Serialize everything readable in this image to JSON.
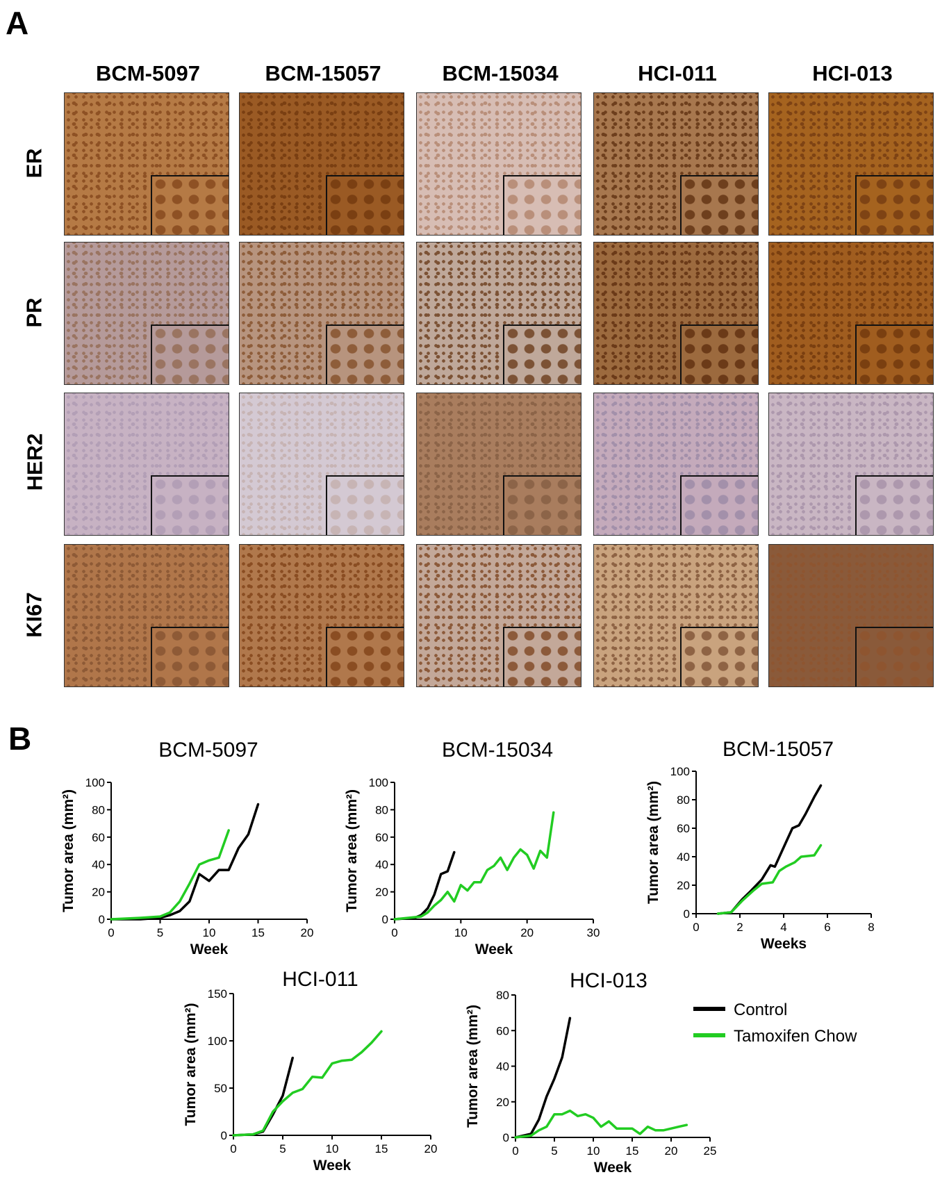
{
  "panel_a": {
    "label": "A",
    "columns": [
      "BCM-5097",
      "BCM-15057",
      "BCM-15034",
      "HCI-011",
      "HCI-013"
    ],
    "rows": [
      "ER",
      "PR",
      "HER2",
      "KI67"
    ],
    "tile_colors": [
      [
        [
          "#b57a45",
          "#8e5124"
        ],
        [
          "#9a5a24",
          "#7a3f12"
        ],
        [
          "#d7bdb4",
          "#b98f7a"
        ],
        [
          "#a7774e",
          "#6e3f1d"
        ],
        [
          "#a5631f",
          "#7e4314"
        ]
      ],
      [
        [
          "#b59a9a",
          "#9a7461"
        ],
        [
          "#b7947e",
          "#8e5d3a"
        ],
        [
          "#bfa89a",
          "#7c5235"
        ],
        [
          "#9c6a3e",
          "#6b3a18"
        ],
        [
          "#a05d1f",
          "#7a3f10"
        ]
      ],
      [
        [
          "#c7b2c3",
          "#b39fb6"
        ],
        [
          "#d4c9d3",
          "#c7b4b4"
        ],
        [
          "#a97d5e",
          "#8c6448"
        ],
        [
          "#c4aabb",
          "#a390aa"
        ],
        [
          "#c9b6c3",
          "#ad98ad"
        ]
      ],
      [
        [
          "#b0764a",
          "#8e5a36"
        ],
        [
          "#b0784c",
          "#8a4d22"
        ],
        [
          "#c3a899",
          "#8c5a3a"
        ],
        [
          "#c9a37e",
          "#8e6344"
        ],
        [
          "#8a5a3a",
          "#8e5530"
        ]
      ]
    ]
  },
  "panel_b": {
    "label": "B",
    "legend": [
      {
        "name": "Control",
        "color": "#000000"
      },
      {
        "name": "Tamoxifen Chow",
        "color": "#22cc22"
      }
    ]
  },
  "chart_data": [
    {
      "type": "line",
      "title": "BCM-5097",
      "xlabel": "Week",
      "ylabel": "Tumor area (mm²)",
      "xlim": [
        0,
        20
      ],
      "ylim": [
        0,
        100
      ],
      "xticks": [
        0,
        5,
        10,
        15,
        20
      ],
      "yticks": [
        0,
        20,
        40,
        60,
        80,
        100
      ],
      "series": [
        {
          "name": "Control",
          "color": "#000000",
          "x": [
            0,
            3,
            5,
            6,
            7,
            8,
            9,
            10,
            11,
            12,
            13,
            14,
            15
          ],
          "y": [
            0,
            0,
            1,
            3,
            6,
            13,
            33,
            28,
            36,
            36,
            52,
            62,
            84
          ]
        },
        {
          "name": "Tamoxifen Chow",
          "color": "#22cc22",
          "x": [
            0,
            3,
            5,
            6,
            7,
            8,
            9,
            10,
            11,
            12
          ],
          "y": [
            0,
            1,
            2,
            5,
            13,
            26,
            40,
            43,
            45,
            65
          ]
        }
      ]
    },
    {
      "type": "line",
      "title": "BCM-15034",
      "xlabel": "Week",
      "ylabel": "Tumor area (mm²)",
      "xlim": [
        0,
        30
      ],
      "ylim": [
        0,
        100
      ],
      "xticks": [
        0,
        10,
        20,
        30
      ],
      "yticks": [
        0,
        20,
        40,
        60,
        80,
        100
      ],
      "series": [
        {
          "name": "Control",
          "color": "#000000",
          "x": [
            0,
            3,
            4,
            5,
            6,
            7,
            8,
            9
          ],
          "y": [
            0,
            1,
            3,
            8,
            18,
            33,
            35,
            49
          ]
        },
        {
          "name": "Tamoxifen Chow",
          "color": "#22cc22",
          "x": [
            0,
            4,
            5,
            6,
            7,
            8,
            9,
            10,
            11,
            12,
            13,
            14,
            15,
            16,
            17,
            18,
            19,
            20,
            21,
            22,
            23,
            24
          ],
          "y": [
            0,
            2,
            5,
            10,
            14,
            20,
            13,
            25,
            21,
            27,
            27,
            36,
            39,
            45,
            36,
            45,
            51,
            47,
            37,
            50,
            45,
            78
          ]
        }
      ]
    },
    {
      "type": "line",
      "title": "BCM-15057",
      "xlabel": "Weeks",
      "ylabel": "Tumor area (mm²)",
      "xlim": [
        0,
        8
      ],
      "ylim": [
        0,
        100
      ],
      "xticks": [
        0,
        2,
        4,
        6,
        8
      ],
      "yticks": [
        0,
        20,
        40,
        60,
        80,
        100
      ],
      "series": [
        {
          "name": "Control",
          "color": "#000000",
          "x": [
            1,
            1.6,
            2.1,
            2.5,
            3.0,
            3.4,
            3.6,
            4.1,
            4.4,
            4.7,
            5.0,
            5.4,
            5.7
          ],
          "y": [
            0,
            1,
            10,
            16,
            24,
            34,
            33,
            50,
            60,
            62,
            70,
            82,
            90
          ]
        },
        {
          "name": "Tamoxifen Chow",
          "color": "#22cc22",
          "x": [
            1,
            1.6,
            2.1,
            2.6,
            3.0,
            3.5,
            3.8,
            4.1,
            4.5,
            4.8,
            5.4,
            5.7
          ],
          "y": [
            0,
            1,
            9,
            16,
            21,
            22,
            30,
            33,
            36,
            40,
            41,
            48
          ]
        }
      ]
    },
    {
      "type": "line",
      "title": "HCI-011",
      "xlabel": "Week",
      "ylabel": "Tumor area (mm²)",
      "xlim": [
        0,
        20
      ],
      "ylim": [
        0,
        150
      ],
      "xticks": [
        0,
        5,
        10,
        15,
        20
      ],
      "yticks": [
        0,
        50,
        100,
        150
      ],
      "series": [
        {
          "name": "Control",
          "color": "#000000",
          "x": [
            0,
            2,
            3,
            4,
            5,
            6
          ],
          "y": [
            0,
            1,
            4,
            22,
            42,
            82
          ]
        },
        {
          "name": "Tamoxifen Chow",
          "color": "#22cc22",
          "x": [
            0,
            2,
            3,
            4,
            5,
            6,
            7,
            8,
            9,
            10,
            11,
            12,
            13,
            14,
            15
          ],
          "y": [
            0,
            1,
            5,
            25,
            36,
            45,
            49,
            62,
            61,
            76,
            79,
            80,
            88,
            98,
            110
          ]
        }
      ]
    },
    {
      "type": "line",
      "title": "HCI-013",
      "xlabel": "Week",
      "ylabel": "Tumor area (mm²)",
      "xlim": [
        0,
        25
      ],
      "ylim": [
        0,
        80
      ],
      "xticks": [
        0,
        5,
        10,
        15,
        20,
        25
      ],
      "yticks": [
        0,
        20,
        40,
        60,
        80
      ],
      "series": [
        {
          "name": "Control",
          "color": "#000000",
          "x": [
            0,
            2,
            3,
            4,
            5,
            6,
            7
          ],
          "y": [
            0,
            2,
            10,
            23,
            33,
            45,
            67
          ]
        },
        {
          "name": "Tamoxifen Chow",
          "color": "#22cc22",
          "x": [
            0,
            2,
            3,
            4,
            5,
            6,
            7,
            8,
            9,
            10,
            11,
            12,
            13,
            14,
            15,
            16,
            17,
            18,
            19,
            20,
            21,
            22
          ],
          "y": [
            0,
            1,
            4,
            6,
            13,
            13,
            15,
            12,
            13,
            11,
            6,
            9,
            5,
            5,
            5,
            2,
            6,
            4,
            4,
            5,
            6,
            7
          ]
        }
      ]
    }
  ]
}
